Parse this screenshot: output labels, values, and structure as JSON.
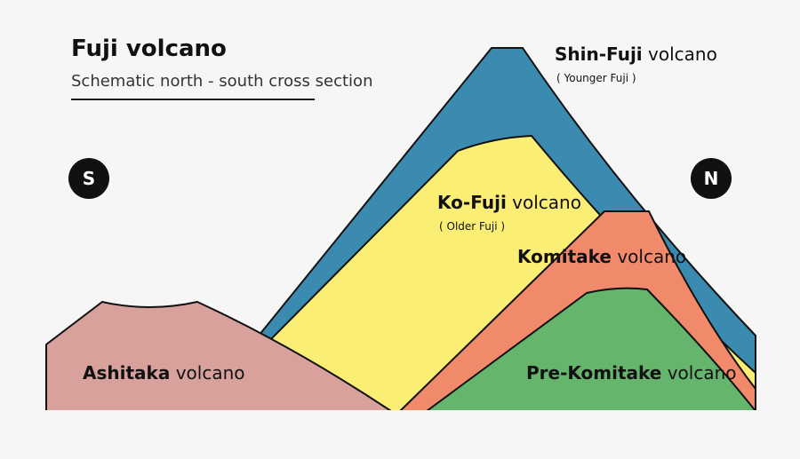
{
  "header": {
    "title": "Fuji volcano",
    "subtitle": "Schematic north - south cross section"
  },
  "compass": {
    "south": "S",
    "north": "N"
  },
  "labels": [
    {
      "name": "Shin-Fuji",
      "word": "volcano",
      "note": "( Younger Fuji )"
    },
    {
      "name": "Ko-Fuji",
      "word": "volcano",
      "note": "( Older Fuji )"
    },
    {
      "name": "Komitake",
      "word": "volcano"
    },
    {
      "name": "Pre-Komitake",
      "word": "volcano"
    },
    {
      "name": "Ashitaka",
      "word": "volcano"
    }
  ]
}
